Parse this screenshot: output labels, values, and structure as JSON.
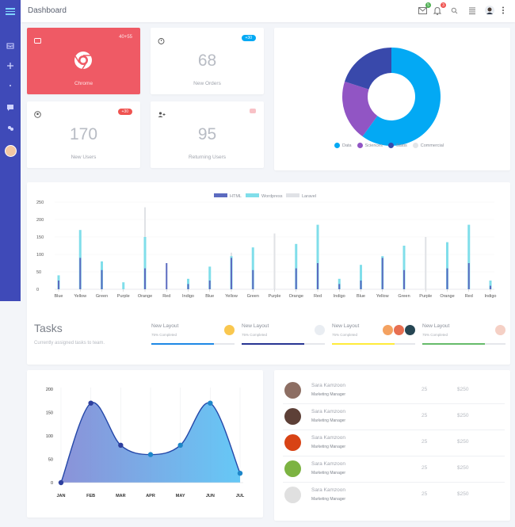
{
  "header": {
    "title": "Dashboard"
  },
  "stats": {
    "chrome": {
      "value": "40+55",
      "label": "Chrome"
    },
    "orders": {
      "badge": "+30",
      "value": "68",
      "label": "New Orders"
    },
    "users": {
      "badge": "+30",
      "value": "170",
      "label": "New Users"
    },
    "returning": {
      "value": "95",
      "label": "Returning Users"
    }
  },
  "donut": {
    "legend": [
      "Data",
      "Sciences",
      "Statis",
      "Commercial"
    ],
    "colors": [
      "#03a9f4",
      "#9155c4",
      "#3949ab",
      "#e3e5e8"
    ],
    "values": [
      60,
      20,
      20,
      0
    ]
  },
  "chart_data": [
    {
      "type": "bar",
      "title": "",
      "series": [
        {
          "name": "HTML",
          "color": "#5c6bc0",
          "values": [
            25,
            90,
            55,
            0,
            60,
            75,
            15,
            25,
            90,
            55,
            0,
            60,
            75,
            15,
            25,
            90,
            55,
            0,
            60,
            75,
            10
          ]
        },
        {
          "name": "Wordpress",
          "color": "#80deea",
          "values": [
            40,
            170,
            80,
            20,
            150,
            0,
            30,
            65,
            95,
            120,
            0,
            130,
            185,
            30,
            70,
            95,
            125,
            0,
            135,
            185,
            25
          ]
        },
        {
          "name": "Laravel",
          "color": "#e0e2e6",
          "values": [
            0,
            0,
            0,
            0,
            235,
            0,
            0,
            0,
            105,
            0,
            160,
            0,
            0,
            0,
            0,
            0,
            0,
            150,
            0,
            0,
            0
          ]
        }
      ],
      "categories": [
        "Blue",
        "Yellow",
        "Green",
        "Purple",
        "Orange",
        "Red",
        "Indigo",
        "Blue",
        "Yellow",
        "Green",
        "Purple",
        "Orange",
        "Red",
        "Indigo",
        "Blue",
        "Yellow",
        "Green",
        "Purple",
        "Orange",
        "Red",
        "Indigo"
      ],
      "yticks": [
        "0",
        "50",
        "100",
        "150",
        "200",
        "250"
      ],
      "ylim": [
        0,
        250
      ]
    },
    {
      "type": "area",
      "title": "",
      "categories": [
        "JAN",
        "FEB",
        "MAR",
        "APR",
        "MAY",
        "JUN",
        "JUL"
      ],
      "values": [
        0,
        170,
        80,
        60,
        80,
        170,
        20
      ],
      "yticks": [
        "0",
        "50",
        "100",
        "150",
        "200"
      ],
      "ylim": [
        0,
        200
      ]
    }
  ],
  "tasks": {
    "title": "Tasks",
    "subtitle": "Currently assigned tasks to team.",
    "items": [
      {
        "name": "New Layout",
        "status": "75% Completed",
        "percent": 75,
        "color": "#1e88e5"
      },
      {
        "name": "New Layout",
        "status": "75% Completed",
        "percent": 75,
        "color": "#283593"
      },
      {
        "name": "New Layout",
        "status": "75% Completed",
        "percent": 75,
        "color": "#ffeb3b"
      },
      {
        "name": "New Layout",
        "status": "75% Completed",
        "percent": 75,
        "color": "#66bb6a"
      }
    ]
  },
  "team": [
    {
      "name": "Sara Kamzoon",
      "role": "Marketing Manager",
      "count": "25",
      "amount": "$250"
    },
    {
      "name": "Sara Kamzoon",
      "role": "Marketing Manager",
      "count": "25",
      "amount": "$250"
    },
    {
      "name": "Sara Kamzoon",
      "role": "Marketing Manager",
      "count": "25",
      "amount": "$250"
    },
    {
      "name": "Sara Kamzoon",
      "role": "Marketing Manager",
      "count": "25",
      "amount": "$250"
    },
    {
      "name": "Sara Kamzoon",
      "role": "Marketing Manager",
      "count": "25",
      "amount": "$250"
    }
  ],
  "notifications": {
    "mail_count": "5",
    "bell_count": "3"
  }
}
